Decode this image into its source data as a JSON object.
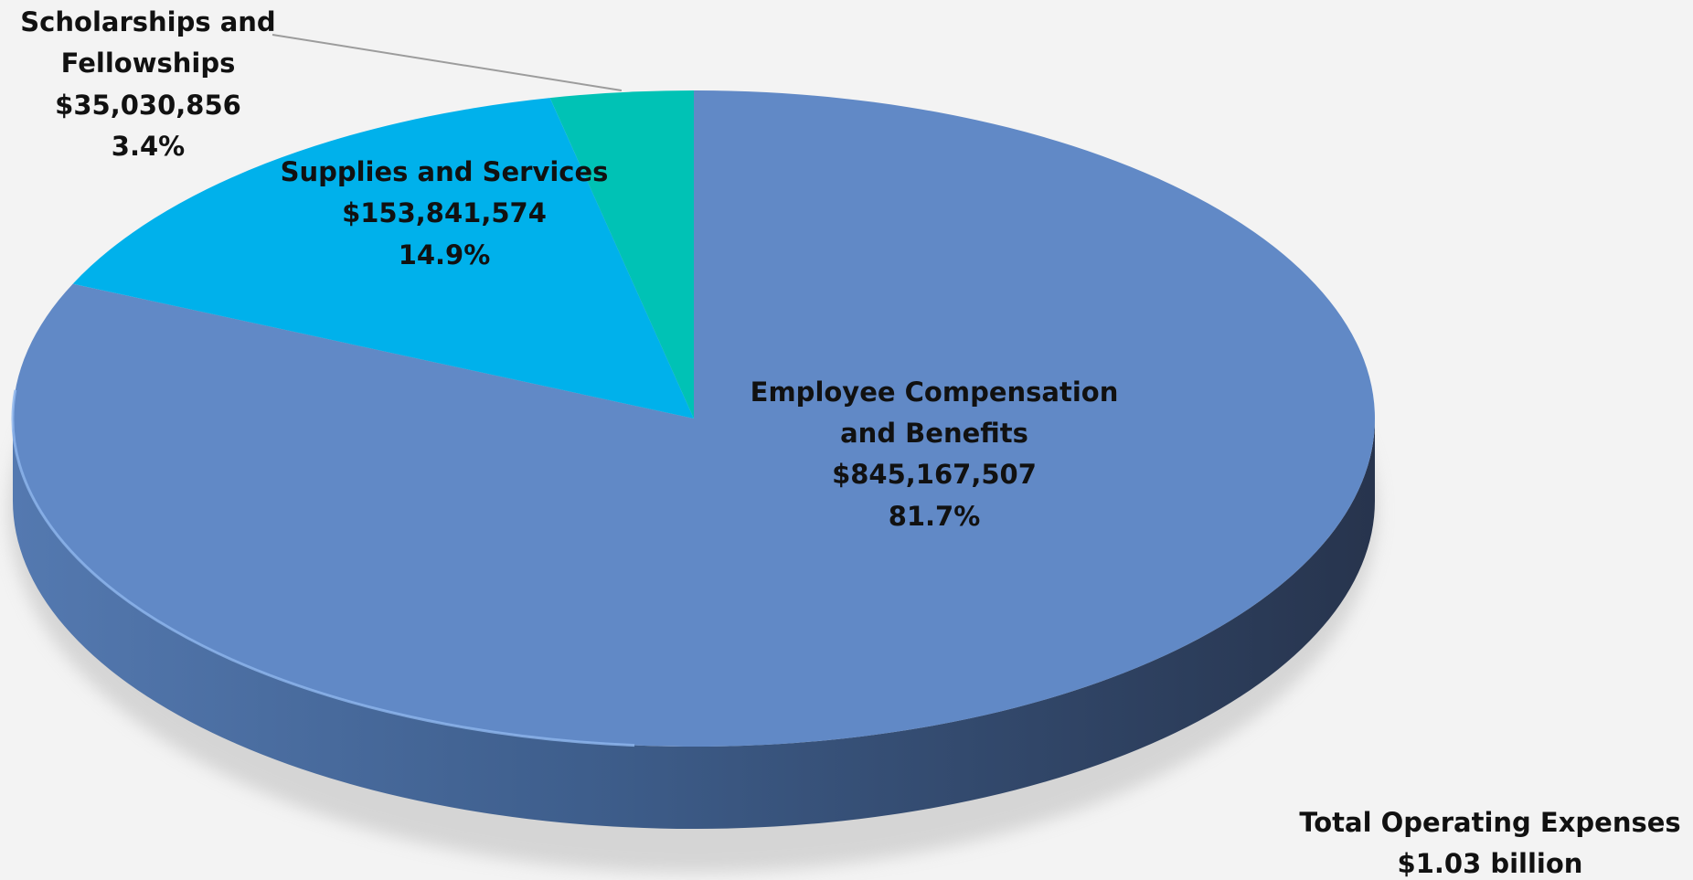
{
  "chart_data": {
    "type": "pie",
    "style": "3d",
    "title": "",
    "slices": [
      {
        "label_lines": [
          "Employee Compensation",
          "and Benefits"
        ],
        "value": 845167507,
        "value_text": "$845,167,507",
        "percent": 81.7,
        "percent_text": "81.7%",
        "color": "#6189c6",
        "side_color_light": "#5479b0",
        "side_color_dark": "#27344d"
      },
      {
        "label_lines": [
          "Supplies and Services"
        ],
        "value": 153841574,
        "value_text": "$153,841,574",
        "percent": 14.9,
        "percent_text": "14.9%",
        "color": "#00b1eb"
      },
      {
        "label_lines": [
          "Scholarships and",
          "Fellowships"
        ],
        "value": 35030856,
        "value_text": "$35,030,856",
        "percent": 3.4,
        "percent_text": "3.4%",
        "color": "#00c2b5"
      }
    ],
    "total": {
      "label": "Total Operating Expenses",
      "value_text": "$1.03 billion"
    },
    "leader_line_color": "#9c9c9c",
    "background": "#f3f3f3"
  }
}
